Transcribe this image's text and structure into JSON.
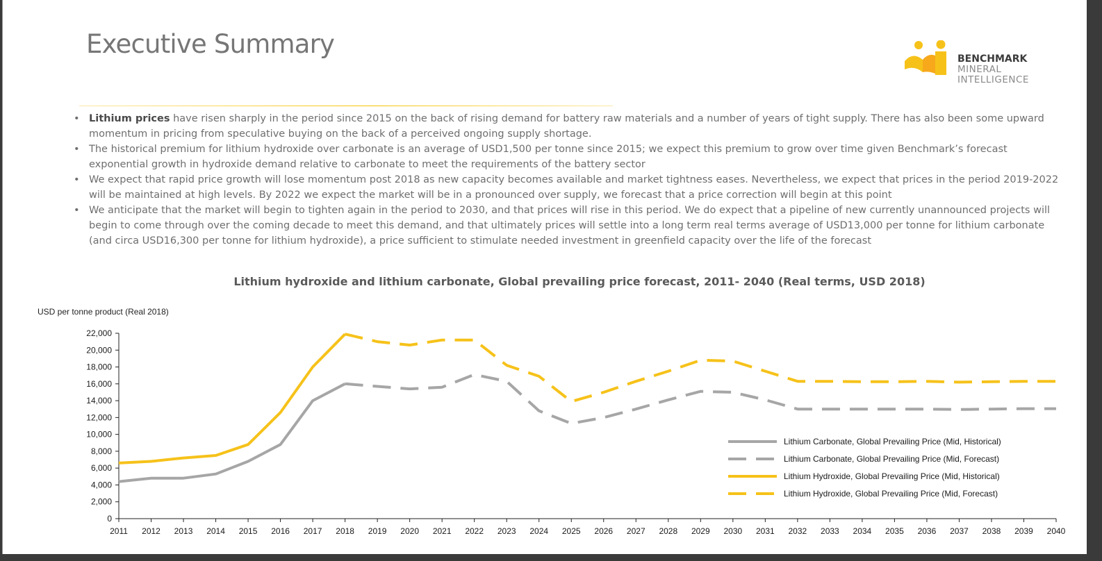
{
  "page_title": "Executive Summary",
  "logo": {
    "line1": "BENCHMARK",
    "line2": "MINERAL",
    "line3": "INTELLIGENCE"
  },
  "bullets": [
    {
      "bold": "Lithium prices",
      "text": " have risen sharply in the period since 2015 on the back of rising demand for battery raw materials and a number of years of tight supply. There has also been some upward momentum in pricing from speculative buying on the back of a perceived ongoing supply shortage."
    },
    {
      "bold": "",
      "text": "The historical premium for lithium hydroxide over carbonate is an average of USD1,500 per tonne since 2015; we expect this premium to grow over time given Benchmark’s forecast exponential growth in hydroxide demand relative to carbonate to meet the requirements of the battery sector"
    },
    {
      "bold": "",
      "text": "We expect that rapid price growth will lose momentum post 2018 as new capacity becomes available and market tightness eases. Nevertheless, we expect that prices in the period 2019-2022 will be maintained at high levels. By 2022 we expect the market will be in a pronounced over supply, we forecast that a price correction will begin at this point"
    },
    {
      "bold": "",
      "text": "We anticipate that the market will begin to tighten again in the period to 2030, and that prices will rise in this period. We do expect that a pipeline of new currently unannounced projects will begin to come through over the coming decade to meet this demand, and that ultimately prices will settle into a long term real terms average of USD13,000 per tonne for lithium carbonate (and circa USD16,300 per tonne for lithium hydroxide), a price sufficient to stimulate needed investment in greenfield capacity over the life of the forecast"
    }
  ],
  "colors": {
    "carbonate": "#a6a6a6",
    "hydroxide": "#f6c21a",
    "logo": "#f6c21a",
    "title": "#767676"
  },
  "chart_data": {
    "type": "line",
    "title": "Lithium hydroxide and lithium carbonate, Global prevailing price forecast, 2011- 2040 (Real terms, USD 2018)",
    "ylabel": "USD per tonne product  (Real 2018)",
    "xlabel": "",
    "ylim": [
      0,
      22000
    ],
    "yticks": [
      0,
      2000,
      4000,
      6000,
      8000,
      10000,
      12000,
      14000,
      16000,
      18000,
      20000,
      22000
    ],
    "ytick_labels": [
      "0",
      "2,000",
      "4,000",
      "6,000",
      "8,000",
      "10,000",
      "12,000",
      "14,000",
      "16,000",
      "18,000",
      "20,000",
      "22,000"
    ],
    "x": [
      2011,
      2012,
      2013,
      2014,
      2015,
      2016,
      2017,
      2018,
      2019,
      2020,
      2021,
      2022,
      2023,
      2024,
      2025,
      2026,
      2027,
      2028,
      2029,
      2030,
      2031,
      2032,
      2033,
      2034,
      2035,
      2036,
      2037,
      2038,
      2039,
      2040
    ],
    "grid": false,
    "legend_position": "bottom-right",
    "series": [
      {
        "name": "Lithium Carbonate, Global Prevailing Price (Mid, Historical)",
        "style": "solid",
        "color": "#a6a6a6",
        "x": [
          2011,
          2012,
          2013,
          2014,
          2015,
          2016,
          2017,
          2018
        ],
        "values": [
          4400,
          4800,
          4800,
          5300,
          6800,
          8800,
          14000,
          16000
        ]
      },
      {
        "name": "Lithium Carbonate, Global Prevailing Price (Mid, Forecast)",
        "style": "dashed",
        "color": "#a6a6a6",
        "x": [
          2018,
          2019,
          2020,
          2021,
          2022,
          2023,
          2024,
          2025,
          2026,
          2027,
          2028,
          2029,
          2030,
          2031,
          2032,
          2033,
          2034,
          2035,
          2036,
          2037,
          2038,
          2039,
          2040
        ],
        "values": [
          16000,
          15700,
          15400,
          15600,
          17100,
          16300,
          12800,
          11300,
          12000,
          13000,
          14100,
          15100,
          15000,
          14100,
          13000,
          13000,
          13000,
          13000,
          13000,
          12950,
          13000,
          13050,
          13050
        ]
      },
      {
        "name": "Lithium Hydroxide, Global Prevailing Price (Mid, Historical)",
        "style": "solid",
        "color": "#f6c21a",
        "x": [
          2011,
          2012,
          2013,
          2014,
          2015,
          2016,
          2017,
          2018
        ],
        "values": [
          6600,
          6800,
          7200,
          7500,
          8800,
          12600,
          18000,
          21900
        ]
      },
      {
        "name": "Lithium Hydroxide, Global Prevailing Price (Mid, Forecast)",
        "style": "dashed",
        "color": "#f6c21a",
        "x": [
          2018,
          2019,
          2020,
          2021,
          2022,
          2023,
          2024,
          2025,
          2026,
          2027,
          2028,
          2029,
          2030,
          2031,
          2032,
          2033,
          2034,
          2035,
          2036,
          2037,
          2038,
          2039,
          2040
        ],
        "values": [
          21900,
          21000,
          20600,
          21200,
          21200,
          18200,
          16900,
          13900,
          15000,
          16300,
          17500,
          18800,
          18700,
          17500,
          16300,
          16300,
          16250,
          16250,
          16300,
          16200,
          16250,
          16300,
          16300
        ]
      }
    ]
  }
}
